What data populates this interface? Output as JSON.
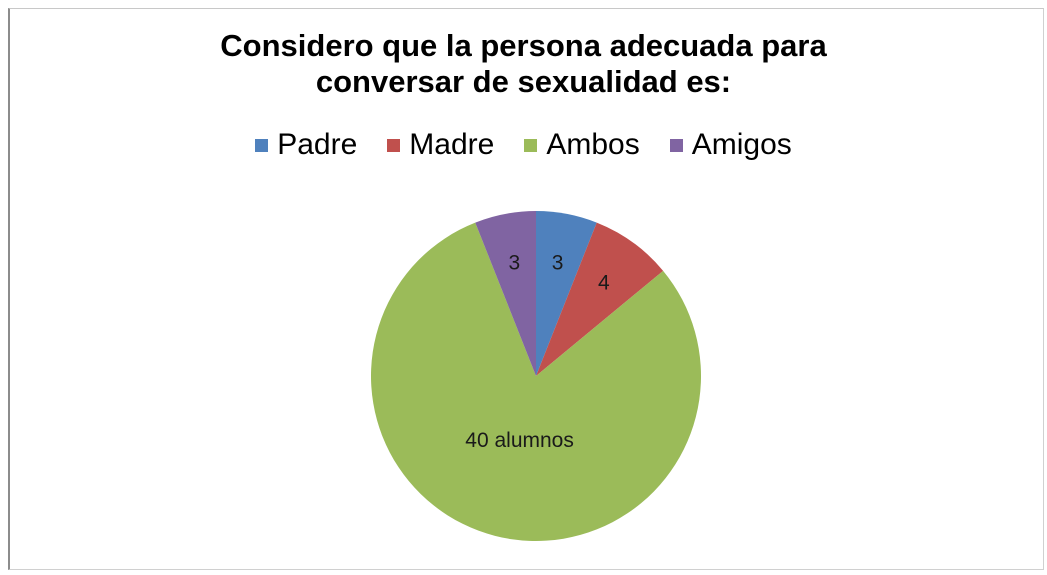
{
  "chart_data": {
    "type": "pie",
    "title_lines": [
      "Considero que la persona adecuada para",
      "conversar de sexualidad es:"
    ],
    "legend_position": "top",
    "categories": [
      "Padre",
      "Madre",
      "Ambos",
      "Amigos"
    ],
    "values": [
      3,
      4,
      40,
      3
    ],
    "data_labels": [
      "3",
      "4",
      "40 alumnos",
      "3"
    ],
    "colors": [
      "#4f81bd",
      "#c0504d",
      "#9bbb59",
      "#8064a2"
    ]
  }
}
